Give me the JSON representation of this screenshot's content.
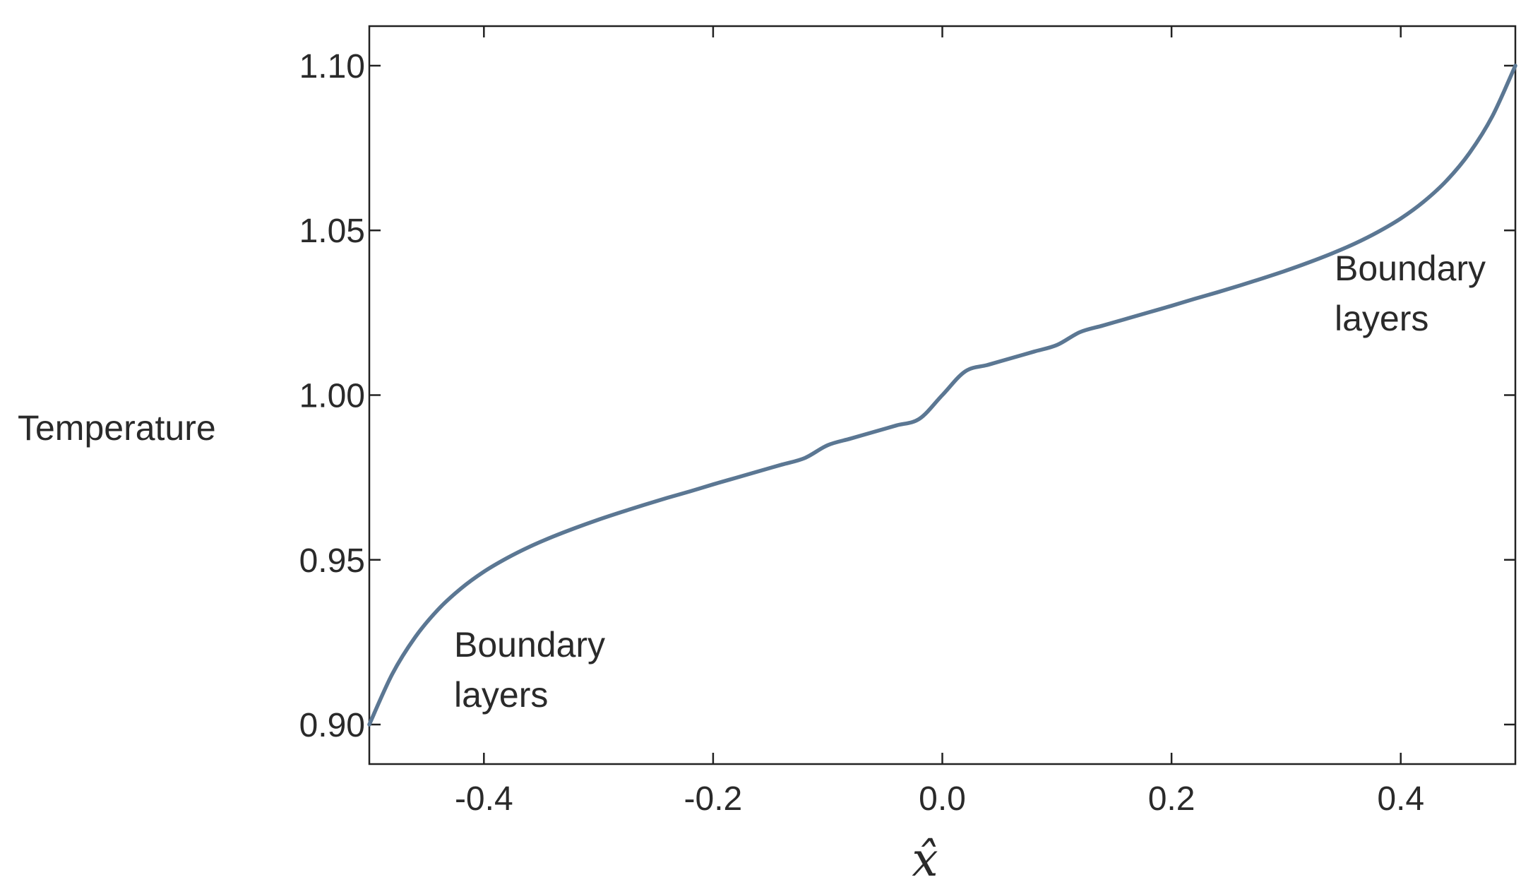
{
  "chart_data": {
    "type": "line",
    "title": "",
    "xlabel": "x̂",
    "ylabel": "Temperature",
    "xlim": [
      -0.5,
      0.5
    ],
    "ylim": [
      0.888,
      1.112
    ],
    "grid": false,
    "legend": "none",
    "xticks": [
      -0.4,
      -0.2,
      0.0,
      0.2,
      0.4
    ],
    "xtick_labels": [
      "-0.4",
      "-0.2",
      "0.0",
      "0.2",
      "0.4"
    ],
    "yticks": [
      0.9,
      0.95,
      1.0,
      1.05,
      1.1
    ],
    "ytick_labels": [
      "0.90",
      "0.95",
      "1.00",
      "1.05",
      "1.10"
    ],
    "line_color": "#5b7793",
    "series": [
      {
        "x": [
          -0.5,
          -0.48,
          -0.46,
          -0.44,
          -0.42,
          -0.4,
          -0.38,
          -0.36,
          -0.34,
          -0.32,
          -0.3,
          -0.28,
          -0.26,
          -0.24,
          -0.22,
          -0.2,
          -0.18,
          -0.16,
          -0.14,
          -0.12,
          -0.1,
          -0.08,
          -0.06,
          -0.04,
          -0.02,
          0.0,
          0.02,
          0.04,
          0.06,
          0.08,
          0.1,
          0.12,
          0.14,
          0.16,
          0.18,
          0.2,
          0.22,
          0.24,
          0.26,
          0.28,
          0.3,
          0.32,
          0.34,
          0.36,
          0.38,
          0.4,
          0.42,
          0.44,
          0.46,
          0.48,
          0.5
        ],
        "y": [
          0.9,
          0.9153,
          0.9265,
          0.9349,
          0.9413,
          0.9464,
          0.9505,
          0.954,
          0.957,
          0.9597,
          0.9622,
          0.9645,
          0.9667,
          0.9688,
          0.9708,
          0.9729,
          0.9749,
          0.9769,
          0.9789,
          0.9809,
          0.9848,
          0.9868,
          0.9888,
          0.9908,
          0.9928,
          1.0,
          1.0072,
          1.0092,
          1.0112,
          1.0132,
          1.0152,
          1.0191,
          1.0211,
          1.0231,
          1.0251,
          1.0271,
          1.0292,
          1.0312,
          1.0333,
          1.0355,
          1.0378,
          1.0403,
          1.043,
          1.046,
          1.0495,
          1.0536,
          1.0587,
          1.0651,
          1.0735,
          1.0847,
          1.1
        ]
      }
    ],
    "annotations": [
      {
        "text": [
          "Boundary",
          "layers"
        ]
      },
      {
        "text": [
          "Boundary",
          "layers"
        ]
      }
    ]
  }
}
